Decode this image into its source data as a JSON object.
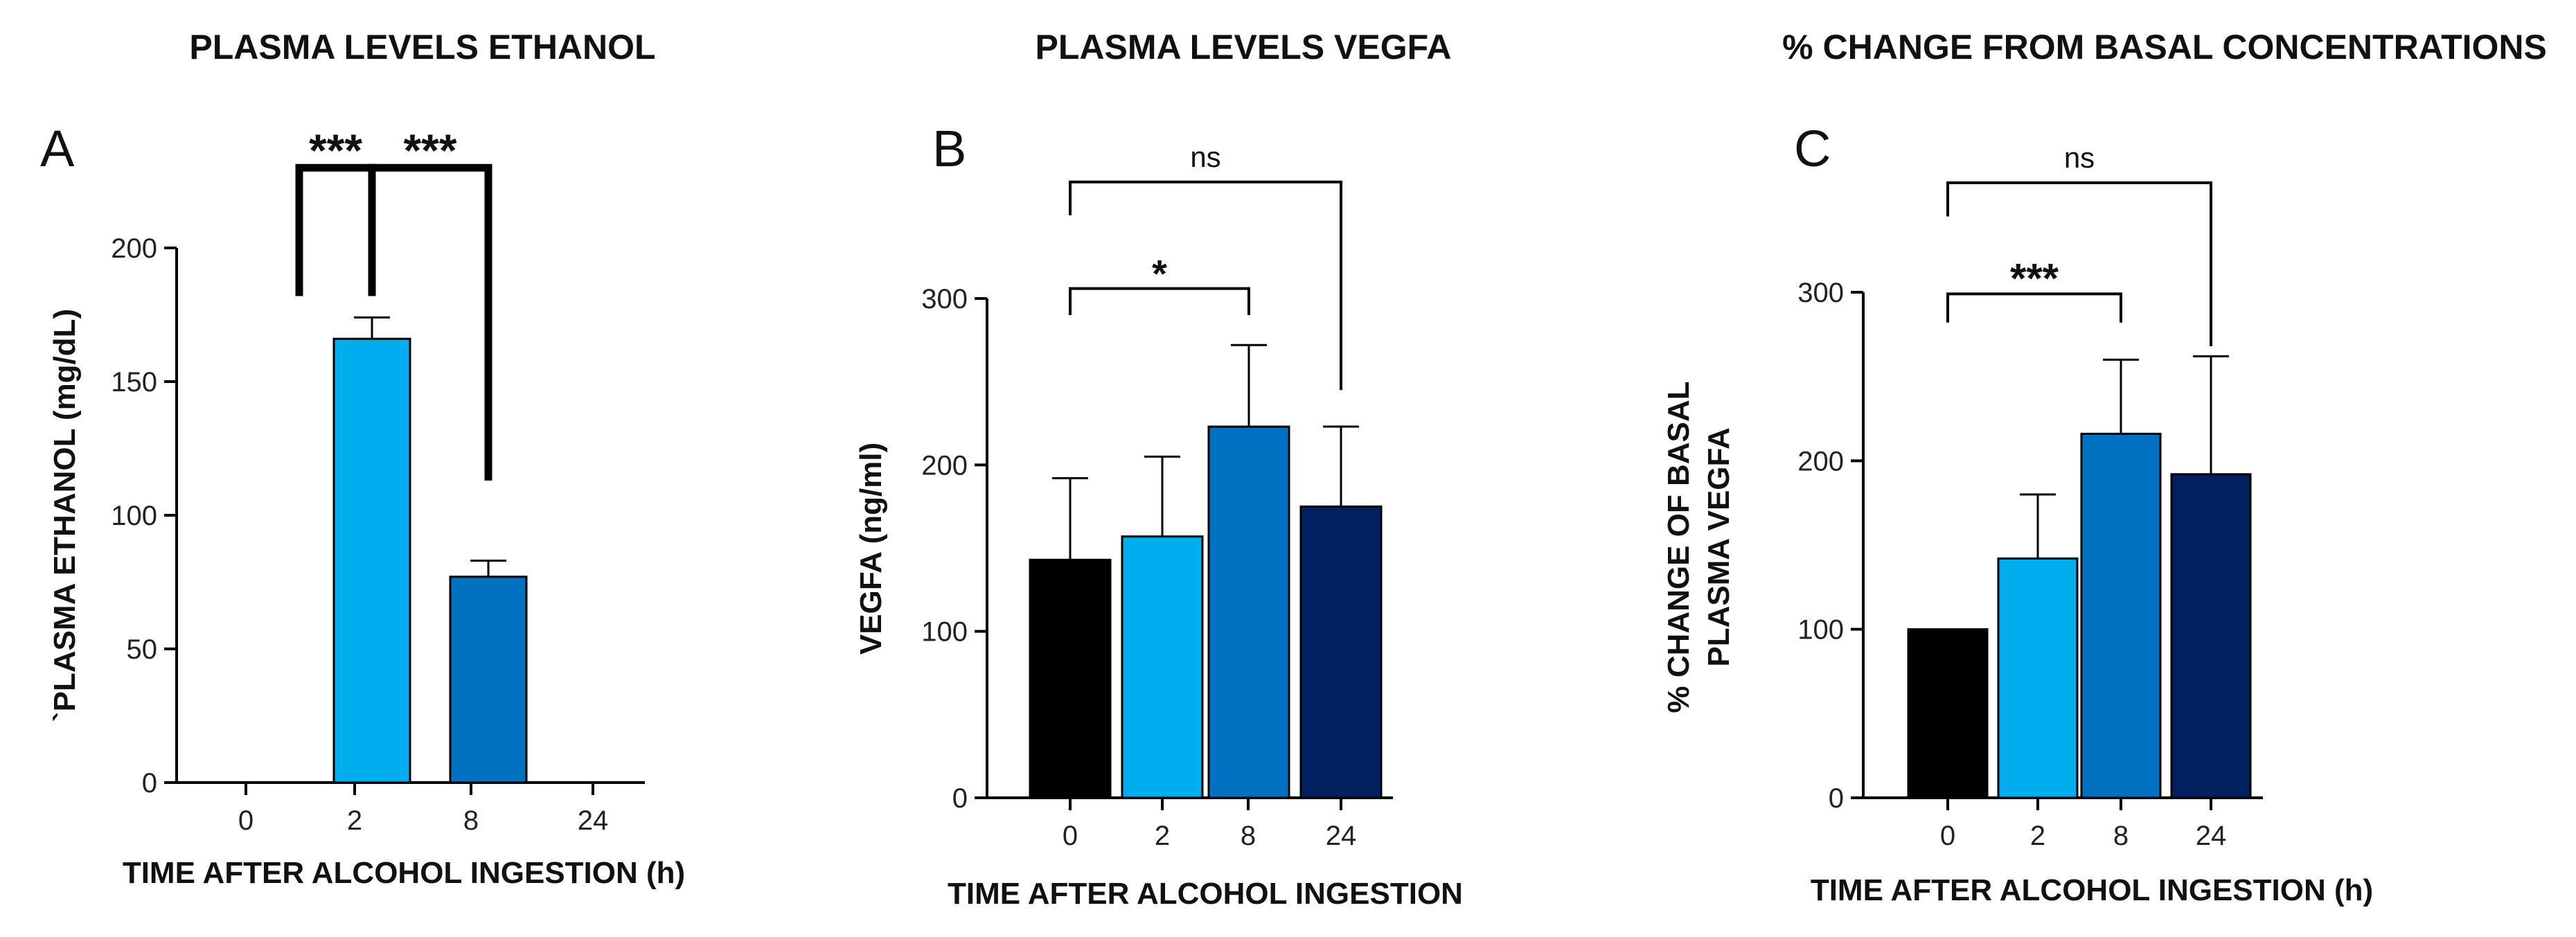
{
  "chart_data": [
    {
      "type": "bar",
      "panel": "A",
      "title": "PLASMA LEVELS ETHANOL",
      "xlabel": "TIME AFTER ALCOHOL INGESTION (h)",
      "ylabel": "`PLASMA ETHANOL (mg/dL)",
      "categories": [
        "0",
        "2",
        "8",
        "24"
      ],
      "values": [
        0,
        166,
        77,
        0
      ],
      "errors": [
        0,
        8,
        6,
        0
      ],
      "colors": [
        "#000000",
        "#00AEEF",
        "#0070C0",
        "#002060"
      ],
      "ylim": [
        0,
        200
      ],
      "yticks": [
        "0",
        "50",
        "100",
        "150",
        "200"
      ],
      "significance": [
        {
          "from": 0,
          "to": 1,
          "label": "***",
          "start_value": 182,
          "end_value": 182,
          "bracket_value": 230
        },
        {
          "from": 1,
          "to": 2,
          "label": "***",
          "start_value": 182,
          "end_value": 113,
          "bracket_value": 230
        }
      ],
      "grid": false
    },
    {
      "type": "bar",
      "panel": "B",
      "title": "PLASMA LEVELS VEGFA",
      "xlabel": "TIME AFTER ALCOHOL INGESTION",
      "ylabel": "VEGFA (ng/ml)",
      "categories": [
        "0",
        "2",
        "8",
        "24"
      ],
      "values": [
        143,
        157,
        223,
        175
      ],
      "errors": [
        49,
        48,
        49,
        48
      ],
      "colors": [
        "#000000",
        "#00AEEF",
        "#0070C0",
        "#002060"
      ],
      "ylim": [
        0,
        300
      ],
      "yticks": [
        "0",
        "100",
        "200",
        "300"
      ],
      "significance": [
        {
          "from": 0,
          "to": 2,
          "label": "*",
          "start_value": 290,
          "end_value": 290,
          "bracket_value": 306
        },
        {
          "from": 0,
          "to": 3,
          "label": "ns",
          "start_value": 350,
          "end_value": 245,
          "bracket_value": 370
        }
      ],
      "grid": false
    },
    {
      "type": "bar",
      "panel": "C",
      "title": "% CHANGE FROM BASAL CONCENTRATIONS",
      "xlabel": "TIME AFTER ALCOHOL INGESTION (h)",
      "ylabel": [
        "% CHANGE OF BASAL",
        "PLASMA VEGFA"
      ],
      "categories": [
        "0",
        "2",
        "8",
        "24"
      ],
      "values": [
        100,
        142,
        216,
        192
      ],
      "errors": [
        0,
        38,
        44,
        70
      ],
      "colors": [
        "#000000",
        "#00AEEF",
        "#0070C0",
        "#002060"
      ],
      "ylim": [
        0,
        300
      ],
      "yticks": [
        "0",
        "100",
        "200",
        "300"
      ],
      "significance": [
        {
          "from": 0,
          "to": 2,
          "label": "***",
          "start_value": 282,
          "end_value": 282,
          "bracket_value": 299
        },
        {
          "from": 0,
          "to": 3,
          "label": "ns",
          "start_value": 345,
          "end_value": 268,
          "bracket_value": 365
        }
      ],
      "grid": false
    }
  ]
}
